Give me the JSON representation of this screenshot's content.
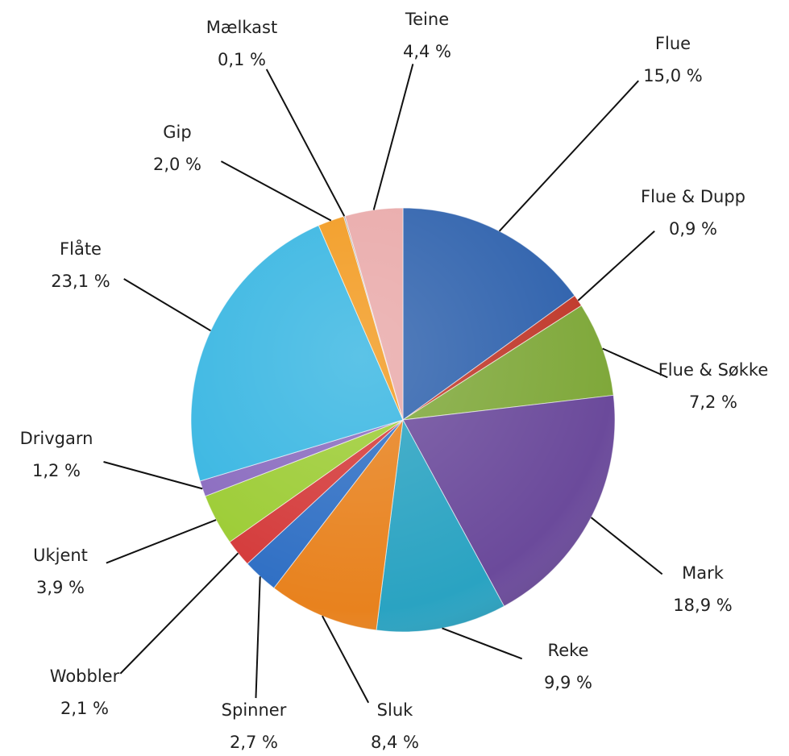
{
  "chart_data": {
    "type": "pie",
    "categories": [
      "Flue",
      "Flue & Dupp",
      "Flue & Søkke",
      "Mark",
      "Reke",
      "Sluk",
      "Spinner",
      "Wobbler",
      "Ukjent",
      "Drivgarn",
      "Flåte",
      "Gip",
      "Mælkast",
      "Teine"
    ],
    "values": [
      15.0,
      0.9,
      7.2,
      18.9,
      9.9,
      8.4,
      2.7,
      2.1,
      3.9,
      1.2,
      23.1,
      2.0,
      0.1,
      4.4
    ],
    "value_labels": [
      "15,0 %",
      "0,9 %",
      "7,2 %",
      "18,9 %",
      "9,9 %",
      "8,4 %",
      "2,7 %",
      "2,1 %",
      "3,9 %",
      "1,2 %",
      "23,1 %",
      "2,0 %",
      "0,1 %",
      "4,4 %"
    ],
    "colors": [
      "#2f62ad",
      "#c0392b",
      "#7fa83a",
      "#6b4a9b",
      "#2aa3c2",
      "#e8821e",
      "#2f6fc4",
      "#d43a3a",
      "#9ccc34",
      "#8a6bbf",
      "#38b6e2",
      "#f29a1f",
      "#9a9a9a",
      "#e9a9a9"
    ]
  }
}
